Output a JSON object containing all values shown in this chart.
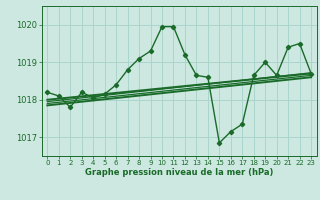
{
  "background_color": "#cce8e0",
  "grid_color": "#aad4cc",
  "line_color": "#1a6b2a",
  "text_color": "#1a6b2a",
  "title": "Graphe pression niveau de la mer (hPa)",
  "xlim": [
    -0.5,
    23.5
  ],
  "ylim": [
    1016.5,
    1020.5
  ],
  "yticks": [
    1017,
    1018,
    1019,
    1020
  ],
  "xticks": [
    0,
    1,
    2,
    3,
    4,
    5,
    6,
    7,
    8,
    9,
    10,
    11,
    12,
    13,
    14,
    15,
    16,
    17,
    18,
    19,
    20,
    21,
    22,
    23
  ],
  "main_x": [
    0,
    1,
    2,
    3,
    4,
    5,
    6,
    7,
    8,
    9,
    10,
    11,
    12,
    13,
    14,
    15,
    16,
    17,
    18,
    19,
    20,
    21,
    22,
    23
  ],
  "main_y": [
    1018.2,
    1018.1,
    1017.8,
    1018.2,
    1018.05,
    1018.15,
    1018.4,
    1018.8,
    1019.1,
    1019.3,
    1019.95,
    1019.95,
    1019.2,
    1018.65,
    1018.6,
    1016.85,
    1017.15,
    1017.35,
    1018.65,
    1019.0,
    1018.65,
    1019.4,
    1019.5,
    1018.7
  ],
  "line2_x": [
    0,
    23
  ],
  "line2_y": [
    1018.0,
    1018.7
  ],
  "line3_x": [
    0,
    23
  ],
  "line3_y": [
    1017.85,
    1018.6
  ],
  "line4_x": [
    0,
    23
  ],
  "line4_y": [
    1017.9,
    1018.65
  ],
  "line5_x": [
    0,
    23
  ],
  "line5_y": [
    1017.95,
    1018.72
  ],
  "figsize": [
    3.2,
    2.0
  ],
  "dpi": 100
}
